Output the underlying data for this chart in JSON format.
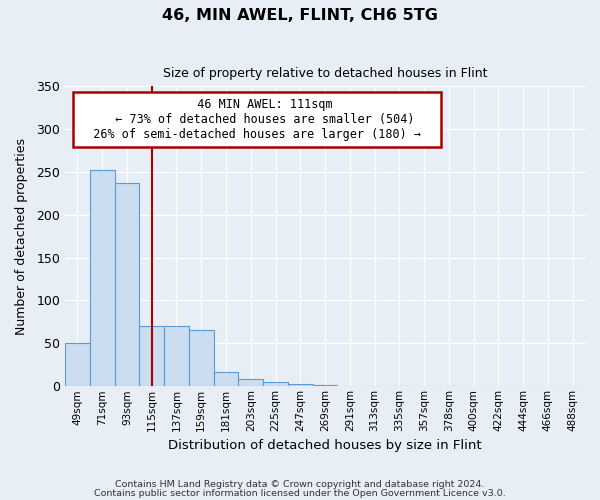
{
  "title": "46, MIN AWEL, FLINT, CH6 5TG",
  "subtitle": "Size of property relative to detached houses in Flint",
  "xlabel": "Distribution of detached houses by size in Flint",
  "ylabel": "Number of detached properties",
  "footnote1": "Contains HM Land Registry data © Crown copyright and database right 2024.",
  "footnote2": "Contains public sector information licensed under the Open Government Licence v3.0.",
  "bar_labels": [
    "49sqm",
    "71sqm",
    "93sqm",
    "115sqm",
    "137sqm",
    "159sqm",
    "181sqm",
    "203sqm",
    "225sqm",
    "247sqm",
    "269sqm",
    "291sqm",
    "313sqm",
    "335sqm",
    "357sqm",
    "378sqm",
    "400sqm",
    "422sqm",
    "444sqm",
    "466sqm",
    "488sqm"
  ],
  "bar_values": [
    50,
    252,
    237,
    70,
    70,
    65,
    17,
    9,
    5,
    3,
    1,
    0,
    0,
    0,
    0,
    0,
    0,
    0,
    0,
    0,
    0
  ],
  "bar_color": "#ccddf0",
  "bar_edge_color": "#5b9bd5",
  "ylim": [
    0,
    350
  ],
  "yticks": [
    0,
    50,
    100,
    150,
    200,
    250,
    300,
    350
  ],
  "vline_index": 3,
  "vline_color": "#aa0000",
  "annotation_title": "46 MIN AWEL: 111sqm",
  "annotation_line1": "← 73% of detached houses are smaller (504)",
  "annotation_line2": "26% of semi-detached houses are larger (180) →",
  "annotation_box_facecolor": "#ffffff",
  "annotation_box_edgecolor": "#aa0000",
  "background_color": "#e8eef5",
  "plot_bg_color": "#e8eef5",
  "grid_color": "#ffffff"
}
